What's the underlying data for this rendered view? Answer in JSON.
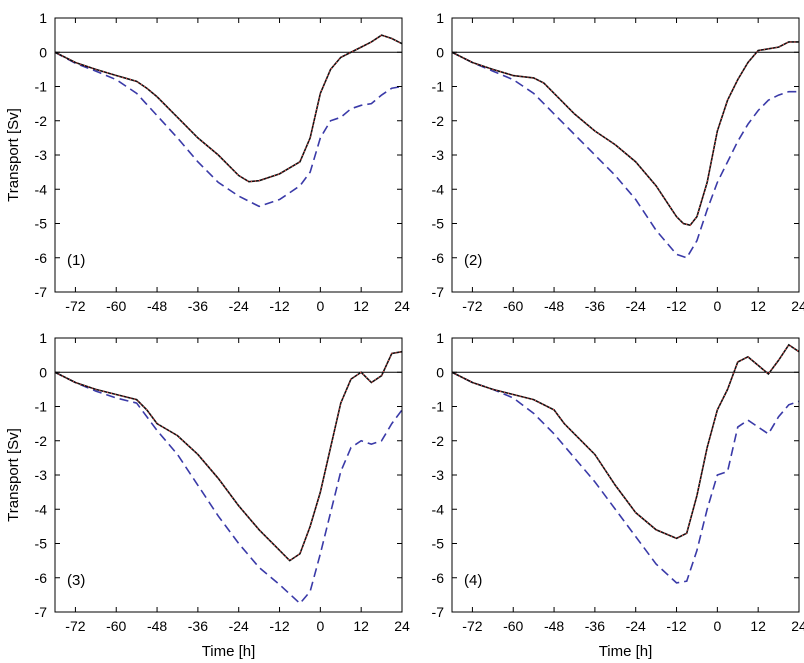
{
  "chart_data": [
    {
      "type": "line",
      "panel_label": "(1)",
      "xlabel": "",
      "ylabel": "Transport [Sv]",
      "xlim": [
        -78,
        24
      ],
      "ylim": [
        -7,
        1
      ],
      "xticks": [
        -72,
        -60,
        -48,
        -36,
        -24,
        -12,
        0,
        12,
        24
      ],
      "yticks": [
        1,
        0,
        -1,
        -2,
        -3,
        -4,
        -5,
        -6,
        -7
      ],
      "grid": false,
      "series": [
        {
          "style": "solid",
          "color": "#111111",
          "x": [
            -78,
            -72,
            -66,
            -60,
            -54,
            -51,
            -48,
            -42,
            -36,
            -30,
            -24,
            -21,
            -18,
            -12,
            -6,
            -3,
            0,
            3,
            6,
            9,
            12,
            15,
            18,
            21,
            24
          ],
          "y": [
            0,
            -0.3,
            -0.5,
            -0.68,
            -0.85,
            -1.05,
            -1.3,
            -1.9,
            -2.5,
            -3.0,
            -3.6,
            -3.78,
            -3.75,
            -3.55,
            -3.2,
            -2.5,
            -1.2,
            -0.5,
            -0.15,
            0.0,
            0.15,
            0.3,
            0.5,
            0.4,
            0.25
          ]
        },
        {
          "style": "dotted",
          "color": "#f04a4a",
          "x": [
            -78,
            -72,
            -66,
            -60,
            -54,
            -51,
            -48,
            -42,
            -36,
            -30,
            -24,
            -21,
            -18,
            -12,
            -6,
            -3,
            0,
            3,
            6,
            9,
            12,
            15,
            18,
            21,
            24
          ],
          "y": [
            0,
            -0.3,
            -0.5,
            -0.68,
            -0.85,
            -1.05,
            -1.3,
            -1.9,
            -2.5,
            -3.0,
            -3.6,
            -3.78,
            -3.75,
            -3.55,
            -3.2,
            -2.5,
            -1.2,
            -0.5,
            -0.15,
            0.0,
            0.15,
            0.3,
            0.5,
            0.4,
            0.25
          ]
        },
        {
          "style": "dashed",
          "color": "#3a3aa8",
          "x": [
            -78,
            -72,
            -66,
            -60,
            -54,
            -48,
            -42,
            -36,
            -30,
            -24,
            -18,
            -12,
            -6,
            -3,
            0,
            3,
            6,
            9,
            12,
            15,
            18,
            21,
            24
          ],
          "y": [
            0,
            -0.32,
            -0.55,
            -0.8,
            -1.2,
            -1.85,
            -2.5,
            -3.2,
            -3.8,
            -4.2,
            -4.5,
            -4.3,
            -3.9,
            -3.5,
            -2.5,
            -2.0,
            -1.9,
            -1.65,
            -1.55,
            -1.5,
            -1.25,
            -1.05,
            -1.0
          ]
        }
      ]
    },
    {
      "type": "line",
      "panel_label": "(2)",
      "xlabel": "",
      "ylabel": "",
      "xlim": [
        -78,
        24
      ],
      "ylim": [
        -7,
        1
      ],
      "xticks": [
        -72,
        -60,
        -48,
        -36,
        -24,
        -12,
        0,
        12,
        24
      ],
      "yticks": [
        1,
        0,
        -1,
        -2,
        -3,
        -4,
        -5,
        -6,
        -7
      ],
      "grid": false,
      "series": [
        {
          "style": "solid",
          "color": "#111111",
          "x": [
            -78,
            -72,
            -66,
            -60,
            -54,
            -51,
            -48,
            -42,
            -36,
            -30,
            -24,
            -18,
            -14,
            -12,
            -10,
            -8,
            -6,
            -3,
            0,
            3,
            6,
            9,
            12,
            15,
            18,
            21,
            24
          ],
          "y": [
            0,
            -0.3,
            -0.5,
            -0.68,
            -0.75,
            -0.9,
            -1.2,
            -1.8,
            -2.3,
            -2.7,
            -3.2,
            -3.9,
            -4.5,
            -4.8,
            -5.0,
            -5.05,
            -4.8,
            -3.8,
            -2.3,
            -1.4,
            -0.8,
            -0.3,
            0.05,
            0.1,
            0.15,
            0.3,
            0.3
          ]
        },
        {
          "style": "dotted",
          "color": "#f04a4a",
          "x": [
            -78,
            -72,
            -66,
            -60,
            -54,
            -51,
            -48,
            -42,
            -36,
            -30,
            -24,
            -18,
            -14,
            -12,
            -10,
            -8,
            -6,
            -3,
            0,
            3,
            6,
            9,
            12,
            15,
            18,
            21,
            24
          ],
          "y": [
            0,
            -0.3,
            -0.5,
            -0.68,
            -0.75,
            -0.9,
            -1.2,
            -1.8,
            -2.3,
            -2.7,
            -3.2,
            -3.9,
            -4.5,
            -4.8,
            -5.0,
            -5.05,
            -4.8,
            -3.8,
            -2.3,
            -1.4,
            -0.8,
            -0.3,
            0.05,
            0.1,
            0.15,
            0.3,
            0.3
          ]
        },
        {
          "style": "dashed",
          "color": "#3a3aa8",
          "x": [
            -78,
            -72,
            -66,
            -60,
            -54,
            -48,
            -42,
            -36,
            -30,
            -24,
            -18,
            -12,
            -9,
            -6,
            -3,
            0,
            3,
            6,
            9,
            12,
            15,
            18,
            21,
            24
          ],
          "y": [
            0,
            -0.3,
            -0.55,
            -0.8,
            -1.2,
            -1.8,
            -2.4,
            -3.0,
            -3.6,
            -4.3,
            -5.2,
            -5.9,
            -6.0,
            -5.5,
            -4.6,
            -3.8,
            -3.2,
            -2.6,
            -2.1,
            -1.7,
            -1.4,
            -1.25,
            -1.15,
            -1.15
          ]
        }
      ]
    },
    {
      "type": "line",
      "panel_label": "(3)",
      "xlabel": "Time [h]",
      "ylabel": "Transport [Sv]",
      "xlim": [
        -78,
        24
      ],
      "ylim": [
        -7,
        1
      ],
      "xticks": [
        -72,
        -60,
        -48,
        -36,
        -24,
        -12,
        0,
        12,
        24
      ],
      "yticks": [
        1,
        0,
        -1,
        -2,
        -3,
        -4,
        -5,
        -6,
        -7
      ],
      "grid": false,
      "series": [
        {
          "style": "solid",
          "color": "#111111",
          "x": [
            -78,
            -72,
            -66,
            -60,
            -54,
            -51,
            -48,
            -42,
            -36,
            -30,
            -24,
            -18,
            -12,
            -9,
            -6,
            -3,
            0,
            3,
            6,
            9,
            12,
            15,
            18,
            21,
            24
          ],
          "y": [
            0,
            -0.3,
            -0.5,
            -0.65,
            -0.8,
            -1.1,
            -1.5,
            -1.85,
            -2.4,
            -3.1,
            -3.9,
            -4.6,
            -5.2,
            -5.5,
            -5.3,
            -4.5,
            -3.5,
            -2.2,
            -0.9,
            -0.2,
            0.0,
            -0.3,
            -0.1,
            0.55,
            0.6
          ]
        },
        {
          "style": "dotted",
          "color": "#f04a4a",
          "x": [
            -78,
            -72,
            -66,
            -60,
            -54,
            -51,
            -48,
            -42,
            -36,
            -30,
            -24,
            -18,
            -12,
            -9,
            -6,
            -3,
            0,
            3,
            6,
            9,
            12,
            15,
            18,
            21,
            24
          ],
          "y": [
            0,
            -0.3,
            -0.5,
            -0.65,
            -0.8,
            -1.1,
            -1.5,
            -1.85,
            -2.4,
            -3.1,
            -3.9,
            -4.6,
            -5.2,
            -5.5,
            -5.3,
            -4.5,
            -3.5,
            -2.2,
            -0.9,
            -0.2,
            0.0,
            -0.3,
            -0.1,
            0.55,
            0.6
          ]
        },
        {
          "style": "dashed",
          "color": "#3a3aa8",
          "x": [
            -78,
            -72,
            -66,
            -60,
            -54,
            -48,
            -42,
            -36,
            -30,
            -24,
            -18,
            -12,
            -6,
            -3,
            0,
            3,
            6,
            9,
            12,
            15,
            18,
            21,
            24
          ],
          "y": [
            0,
            -0.3,
            -0.55,
            -0.75,
            -0.9,
            -1.7,
            -2.4,
            -3.3,
            -4.2,
            -5.0,
            -5.7,
            -6.2,
            -6.75,
            -6.4,
            -5.3,
            -4.1,
            -2.9,
            -2.2,
            -2.0,
            -2.1,
            -2.0,
            -1.5,
            -1.1
          ]
        }
      ]
    },
    {
      "type": "line",
      "panel_label": "(4)",
      "xlabel": "Time [h]",
      "ylabel": "",
      "xlim": [
        -78,
        24
      ],
      "ylim": [
        -7,
        1
      ],
      "xticks": [
        -72,
        -60,
        -48,
        -36,
        -24,
        -12,
        0,
        12,
        24
      ],
      "yticks": [
        1,
        0,
        -1,
        -2,
        -3,
        -4,
        -5,
        -6,
        -7
      ],
      "grid": false,
      "series": [
        {
          "style": "solid",
          "color": "#111111",
          "x": [
            -78,
            -72,
            -66,
            -60,
            -54,
            -48,
            -45,
            -42,
            -36,
            -30,
            -24,
            -18,
            -12,
            -9,
            -6,
            -3,
            0,
            3,
            6,
            9,
            12,
            15,
            18,
            21,
            24
          ],
          "y": [
            0,
            -0.3,
            -0.5,
            -0.65,
            -0.8,
            -1.1,
            -1.5,
            -1.8,
            -2.4,
            -3.3,
            -4.1,
            -4.6,
            -4.85,
            -4.7,
            -3.6,
            -2.2,
            -1.1,
            -0.5,
            0.3,
            0.45,
            0.2,
            -0.05,
            0.35,
            0.8,
            0.6
          ]
        },
        {
          "style": "dotted",
          "color": "#f04a4a",
          "x": [
            -78,
            -72,
            -66,
            -60,
            -54,
            -48,
            -45,
            -42,
            -36,
            -30,
            -24,
            -18,
            -12,
            -9,
            -6,
            -3,
            0,
            3,
            6,
            9,
            12,
            15,
            18,
            21,
            24
          ],
          "y": [
            0,
            -0.3,
            -0.5,
            -0.65,
            -0.8,
            -1.1,
            -1.5,
            -1.8,
            -2.4,
            -3.3,
            -4.1,
            -4.6,
            -4.85,
            -4.7,
            -3.6,
            -2.2,
            -1.1,
            -0.5,
            0.3,
            0.45,
            0.2,
            -0.05,
            0.35,
            0.8,
            0.6
          ]
        },
        {
          "style": "dashed",
          "color": "#3a3aa8",
          "x": [
            -78,
            -72,
            -66,
            -60,
            -54,
            -48,
            -42,
            -36,
            -30,
            -24,
            -18,
            -12,
            -9,
            -6,
            -3,
            0,
            3,
            6,
            9,
            12,
            15,
            18,
            21,
            24
          ],
          "y": [
            0,
            -0.3,
            -0.5,
            -0.75,
            -1.2,
            -1.8,
            -2.5,
            -3.2,
            -4.0,
            -4.8,
            -5.6,
            -6.15,
            -6.1,
            -5.2,
            -4.0,
            -3.0,
            -2.9,
            -1.6,
            -1.4,
            -1.6,
            -1.8,
            -1.3,
            -0.95,
            -0.85
          ]
        }
      ]
    }
  ]
}
